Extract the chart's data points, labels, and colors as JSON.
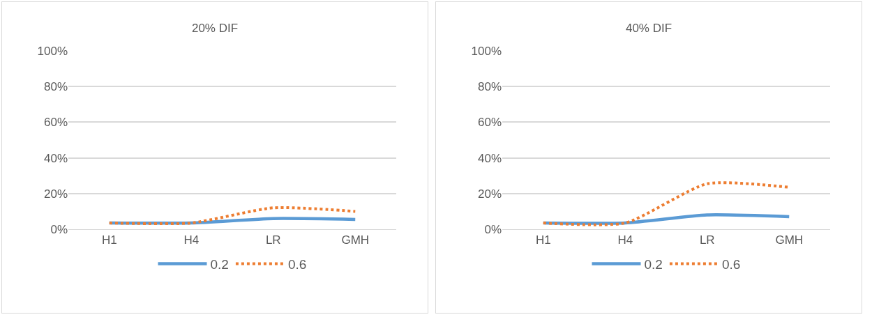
{
  "chart_data": [
    {
      "type": "line",
      "title": "20% DIF",
      "categories": [
        "H1",
        "H4",
        "LR",
        "GMH"
      ],
      "ylim": [
        0,
        100
      ],
      "yticks": [
        {
          "value": 0,
          "label": "0%"
        },
        {
          "value": 20,
          "label": "20%"
        },
        {
          "value": 40,
          "label": "40%"
        },
        {
          "value": 60,
          "label": "60%"
        },
        {
          "value": 80,
          "label": "80%"
        },
        {
          "value": 100,
          "label": "100%"
        }
      ],
      "grid": "y",
      "legend": "bottom",
      "marker": "none",
      "series": [
        {
          "name": "0.2",
          "color": "#5b9bd5",
          "line_style": "solid",
          "values": [
            3.5,
            3.5,
            6,
            5.5
          ]
        },
        {
          "name": "0.6",
          "color": "#ed7d31",
          "line_style": "dotted",
          "values": [
            3.5,
            3.5,
            12,
            10
          ]
        }
      ]
    },
    {
      "type": "line",
      "title": "40% DIF",
      "categories": [
        "H1",
        "H4",
        "LR",
        "GMH"
      ],
      "ylim": [
        0,
        100
      ],
      "yticks": [
        {
          "value": 0,
          "label": "0%"
        },
        {
          "value": 20,
          "label": "20%"
        },
        {
          "value": 40,
          "label": "40%"
        },
        {
          "value": 60,
          "label": "60%"
        },
        {
          "value": 80,
          "label": "80%"
        },
        {
          "value": 100,
          "label": "100%"
        }
      ],
      "grid": "y",
      "legend": "bottom",
      "marker": "none",
      "series": [
        {
          "name": "0.2",
          "color": "#5b9bd5",
          "line_style": "solid",
          "values": [
            3.5,
            3.5,
            8,
            7
          ]
        },
        {
          "name": "0.6",
          "color": "#ed7d31",
          "line_style": "dotted",
          "values": [
            3.5,
            3.5,
            25.5,
            23.5
          ]
        }
      ]
    }
  ]
}
